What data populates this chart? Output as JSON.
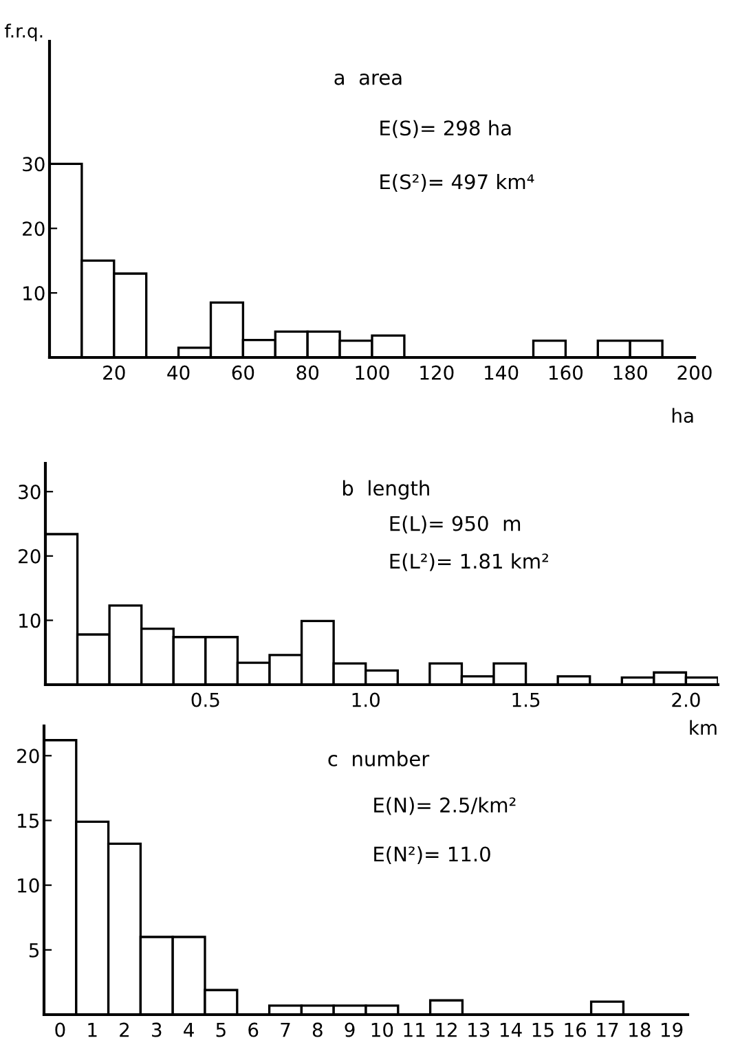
{
  "chart_data": [
    {
      "type": "histogram",
      "title": "a  area",
      "ylabel": "f.r.q.",
      "xlabel": "ha",
      "color": "#ffffff",
      "annotations": [
        "E(S)= 298 ha",
        "E(S²)= 497 km⁴"
      ],
      "bins": [
        0,
        10,
        20,
        30,
        40,
        50,
        60,
        70,
        80,
        90,
        100,
        110,
        120,
        130,
        140,
        150,
        160,
        170,
        180,
        190,
        200
      ],
      "values": [
        30,
        15,
        13,
        0,
        1.5,
        8.5,
        2.7,
        4,
        4,
        2.6,
        3.4,
        0,
        0,
        0,
        0,
        2.6,
        0,
        2.6,
        2.6,
        0
      ],
      "xlim": [
        0,
        200
      ],
      "ylim": [
        0,
        49
      ],
      "xticks": [
        20,
        40,
        60,
        80,
        100,
        120,
        140,
        160,
        180,
        200
      ],
      "yticks": [
        10,
        20,
        30
      ]
    },
    {
      "type": "histogram",
      "title": "b  length",
      "xlabel": "km",
      "color": "#ffffff",
      "annotations": [
        "E(L)= 950  m",
        "E(L²)= 1.81 km²"
      ],
      "bins": [
        0,
        0.1,
        0.2,
        0.3,
        0.4,
        0.5,
        0.6,
        0.7,
        0.8,
        0.9,
        1.0,
        1.1,
        1.2,
        1.3,
        1.4,
        1.5,
        1.6,
        1.7,
        1.8,
        1.9,
        2.0,
        2.1
      ],
      "values": [
        23.4,
        7.8,
        12.3,
        8.7,
        7.4,
        7.4,
        3.4,
        4.6,
        9.9,
        3.3,
        2.2,
        0,
        3.3,
        1.3,
        3.3,
        0,
        1.3,
        0,
        1.1,
        1.9,
        1.1
      ],
      "xlim": [
        0,
        2.1
      ],
      "ylim": [
        0,
        34.4
      ],
      "xticks": [
        {
          "value": 0.5,
          "label": "0.5"
        },
        {
          "value": 1.0,
          "label": "1.0"
        },
        {
          "value": 1.5,
          "label": "1.5"
        },
        {
          "value": 2.0,
          "label": "2.0"
        }
      ],
      "yticks": [
        10,
        20,
        30
      ]
    },
    {
      "type": "histogram",
      "title": "c  number",
      "color": "#ffffff",
      "annotations": [
        "E(N)= 2.5/km²",
        "E(N²)= 11.0"
      ],
      "bins": [
        0,
        1,
        2,
        3,
        4,
        5,
        6,
        7,
        8,
        9,
        10,
        11,
        12,
        13,
        14,
        15,
        16,
        17,
        18,
        19,
        20
      ],
      "values": [
        21.2,
        14.9,
        13.2,
        6,
        6,
        1.9,
        0,
        0.7,
        0.7,
        0.7,
        0.7,
        0,
        1.1,
        0,
        0,
        0,
        0,
        1.0,
        0,
        0
      ],
      "xlim": [
        0,
        20
      ],
      "ylim": [
        0,
        22.3
      ],
      "xticks": [
        {
          "value": 0.5,
          "label": "0"
        },
        {
          "value": 1.5,
          "label": "1"
        },
        {
          "value": 2.5,
          "label": "2"
        },
        {
          "value": 3.5,
          "label": "3"
        },
        {
          "value": 4.5,
          "label": "4"
        },
        {
          "value": 5.5,
          "label": "5"
        },
        {
          "value": 6.5,
          "label": "6"
        },
        {
          "value": 7.5,
          "label": "7"
        },
        {
          "value": 8.5,
          "label": "8"
        },
        {
          "value": 9.5,
          "label": "9"
        },
        {
          "value": 10.5,
          "label": "10"
        },
        {
          "value": 11.5,
          "label": "11"
        },
        {
          "value": 12.5,
          "label": "12"
        },
        {
          "value": 13.5,
          "label": "13"
        },
        {
          "value": 14.5,
          "label": "14"
        },
        {
          "value": 15.5,
          "label": "15"
        },
        {
          "value": 16.5,
          "label": "16"
        },
        {
          "value": 17.5,
          "label": "17"
        },
        {
          "value": 18.5,
          "label": "18"
        },
        {
          "value": 19.5,
          "label": "19"
        }
      ],
      "yticks": [
        5,
        10,
        15,
        20
      ]
    }
  ]
}
